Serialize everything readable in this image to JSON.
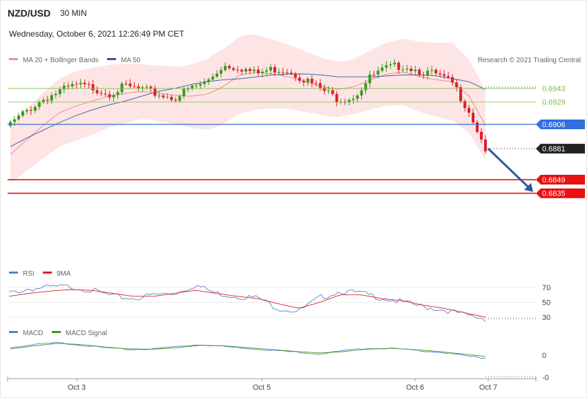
{
  "header": {
    "symbol": "NZD/USD",
    "timeframe": "30 MIN",
    "datetime": "Wednesday, October 6, 2021 12:26:49 PM CET",
    "copyright": "Research © 2021 Trading Central"
  },
  "legends": {
    "price": [
      {
        "label": "MA 20 + Bollinger Bands",
        "color": "#f28b82"
      },
      {
        "label": "MA 50",
        "color": "#2c5aa0"
      }
    ],
    "rsi": [
      {
        "label": "RSI",
        "color": "#5b7fd6"
      },
      {
        "label": "9MA",
        "color": "#e02020"
      }
    ],
    "macd": [
      {
        "label": "MACD",
        "color": "#5b7fd6"
      },
      {
        "label": "MACD Signal",
        "color": "#3a9a1a"
      }
    ]
  },
  "colors": {
    "bull": "#3a9a1a",
    "bear": "#d92027",
    "band": "#fde0e0",
    "ma20": "#f08080",
    "ma50": "#2c5aa0",
    "pivot": "#2f6fe0",
    "resistance": "#7fbf3f",
    "support": "#e81010",
    "last": "#222222",
    "arrow": "#2c5a9a"
  },
  "chart_data": [
    {
      "type": "candlestick",
      "panel": "price",
      "x_labels": [
        "Oct 3",
        "Oct 5",
        "Oct 6",
        "Oct 7"
      ],
      "ylim": [
        0.6812,
        0.6963
      ],
      "levels": [
        {
          "kind": "resistance",
          "value": 0.6943,
          "label": "0.6943"
        },
        {
          "kind": "resistance",
          "value": 0.6929,
          "label": "0.6929"
        },
        {
          "kind": "pivot",
          "value": 0.6906,
          "label": "0.6906"
        },
        {
          "kind": "last",
          "value": 0.6881,
          "label": "0.6881"
        },
        {
          "kind": "support",
          "value": 0.6849,
          "label": "0.6849"
        },
        {
          "kind": "support",
          "value": 0.6835,
          "label": "0.6835"
        }
      ],
      "series": [
        {
          "name": "MA 20 + Bollinger Bands",
          "values": [
            0.6875,
            0.689,
            0.6905,
            0.6918,
            0.6925,
            0.693,
            0.6935,
            0.6938,
            0.694,
            0.6938,
            0.6936,
            0.6935,
            0.6937,
            0.6945,
            0.6957,
            0.696,
            0.6958,
            0.6955,
            0.695,
            0.6945,
            0.6942,
            0.6945,
            0.6952,
            0.6958,
            0.696,
            0.6955,
            0.6952,
            0.695,
            0.6935,
            0.6905
          ]
        },
        {
          "name": "MA 50",
          "values": [
            0.6883,
            0.6892,
            0.69,
            0.6908,
            0.6915,
            0.6921,
            0.6926,
            0.693,
            0.6935,
            0.694,
            0.6943,
            0.6947,
            0.695,
            0.6952,
            0.6953,
            0.6955,
            0.6957,
            0.6958,
            0.6958,
            0.6957,
            0.6955,
            0.6955,
            0.6955,
            0.6956,
            0.6957,
            0.6957,
            0.6956,
            0.6953,
            0.695,
            0.6942
          ]
        },
        {
          "name": "Price",
          "values": [
            0.6906,
            0.692,
            0.6932,
            0.694,
            0.6946,
            0.6944,
            0.6938,
            0.6945,
            0.6942,
            0.6937,
            0.6933,
            0.6943,
            0.695,
            0.6967,
            0.6965,
            0.6958,
            0.6963,
            0.6962,
            0.6952,
            0.6942,
            0.6932,
            0.6935,
            0.6955,
            0.6964,
            0.6967,
            0.6961,
            0.6957,
            0.6948,
            0.692,
            0.6881
          ]
        }
      ]
    },
    {
      "type": "line",
      "panel": "rsi",
      "y_ticks": [
        "70",
        "50",
        "30"
      ],
      "ylim": [
        20,
        80
      ],
      "series": [
        {
          "name": "RSI",
          "values": [
            62,
            68,
            70,
            71,
            66,
            58,
            55,
            60,
            62,
            73,
            62,
            58,
            56,
            42,
            38,
            56,
            65,
            62,
            56,
            50,
            44,
            40,
            33,
            28
          ]
        },
        {
          "name": "9MA",
          "values": [
            58,
            62,
            65,
            67,
            66,
            62,
            58,
            58,
            62,
            66,
            62,
            58,
            55,
            48,
            42,
            50,
            60,
            60,
            55,
            52,
            46,
            42,
            36,
            30
          ]
        }
      ]
    },
    {
      "type": "line",
      "panel": "macd",
      "y_ticks": [
        "0",
        "-0"
      ],
      "series": [
        {
          "name": "MACD",
          "values": [
            0.6,
            0.85,
            1.0,
            0.8,
            0.6,
            0.45,
            0.5,
            0.7,
            0.85,
            0.7,
            0.55,
            0.4,
            0.25,
            0.1,
            0.35,
            0.55,
            0.55,
            0.4,
            0.25,
            0.0,
            -0.25
          ]
        },
        {
          "name": "MACD Signal",
          "values": [
            0.5,
            0.75,
            0.95,
            0.85,
            0.65,
            0.5,
            0.48,
            0.6,
            0.8,
            0.75,
            0.6,
            0.45,
            0.3,
            0.18,
            0.28,
            0.48,
            0.55,
            0.45,
            0.3,
            0.1,
            -0.1
          ]
        }
      ]
    }
  ]
}
